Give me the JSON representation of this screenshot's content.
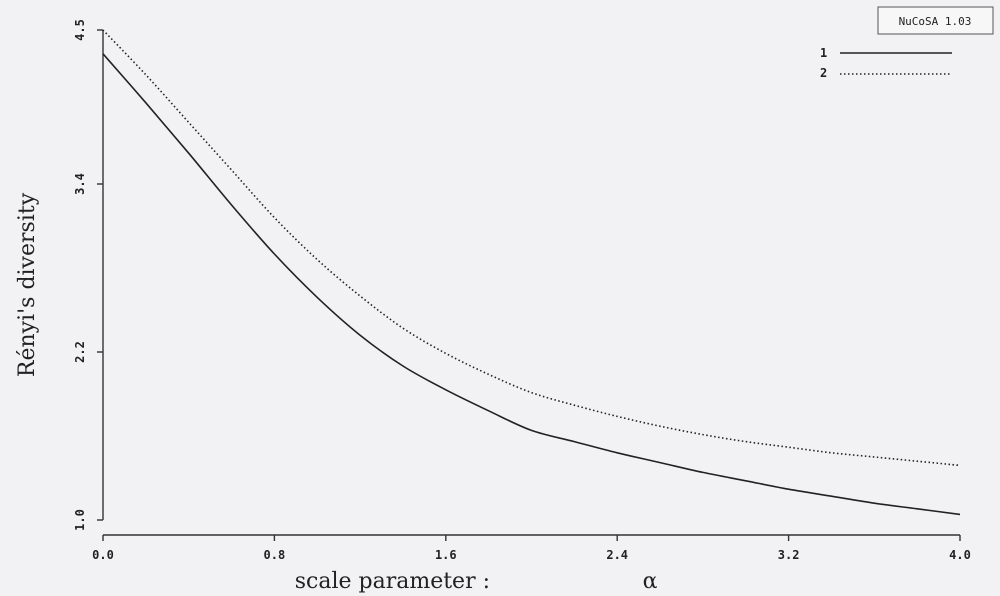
{
  "chart_data": {
    "type": "line",
    "title": "",
    "badge": "NuCoSA 1.03",
    "xlabel": "scale parameter :",
    "xlabel_symbol": "α",
    "ylabel": "Rényi's diversity",
    "xlim": [
      0.0,
      4.0
    ],
    "ylim": [
      1.0,
      4.5
    ],
    "xticks": [
      "0.0",
      "0.8",
      "1.6",
      "2.4",
      "3.2",
      "4.0"
    ],
    "yticks": [
      "1.0",
      "2.2",
      "3.4",
      "4.5"
    ],
    "legend_position": "top-right",
    "grid": false,
    "x": [
      0.0,
      0.2,
      0.4,
      0.6,
      0.8,
      1.0,
      1.2,
      1.4,
      1.6,
      1.8,
      2.0,
      2.2,
      2.4,
      2.6,
      2.8,
      3.0,
      3.2,
      3.4,
      3.6,
      3.8,
      4.0
    ],
    "series": [
      {
        "name": "1",
        "style": "solid",
        "values": [
          4.33,
          3.98,
          3.62,
          3.25,
          2.9,
          2.59,
          2.32,
          2.1,
          1.93,
          1.78,
          1.64,
          1.56,
          1.48,
          1.41,
          1.34,
          1.28,
          1.22,
          1.17,
          1.12,
          1.08,
          1.04
        ]
      },
      {
        "name": "2",
        "style": "dotted",
        "values": [
          4.5,
          4.18,
          3.84,
          3.5,
          3.16,
          2.86,
          2.6,
          2.37,
          2.19,
          2.04,
          1.91,
          1.82,
          1.74,
          1.67,
          1.61,
          1.56,
          1.52,
          1.48,
          1.45,
          1.42,
          1.39
        ]
      }
    ]
  }
}
